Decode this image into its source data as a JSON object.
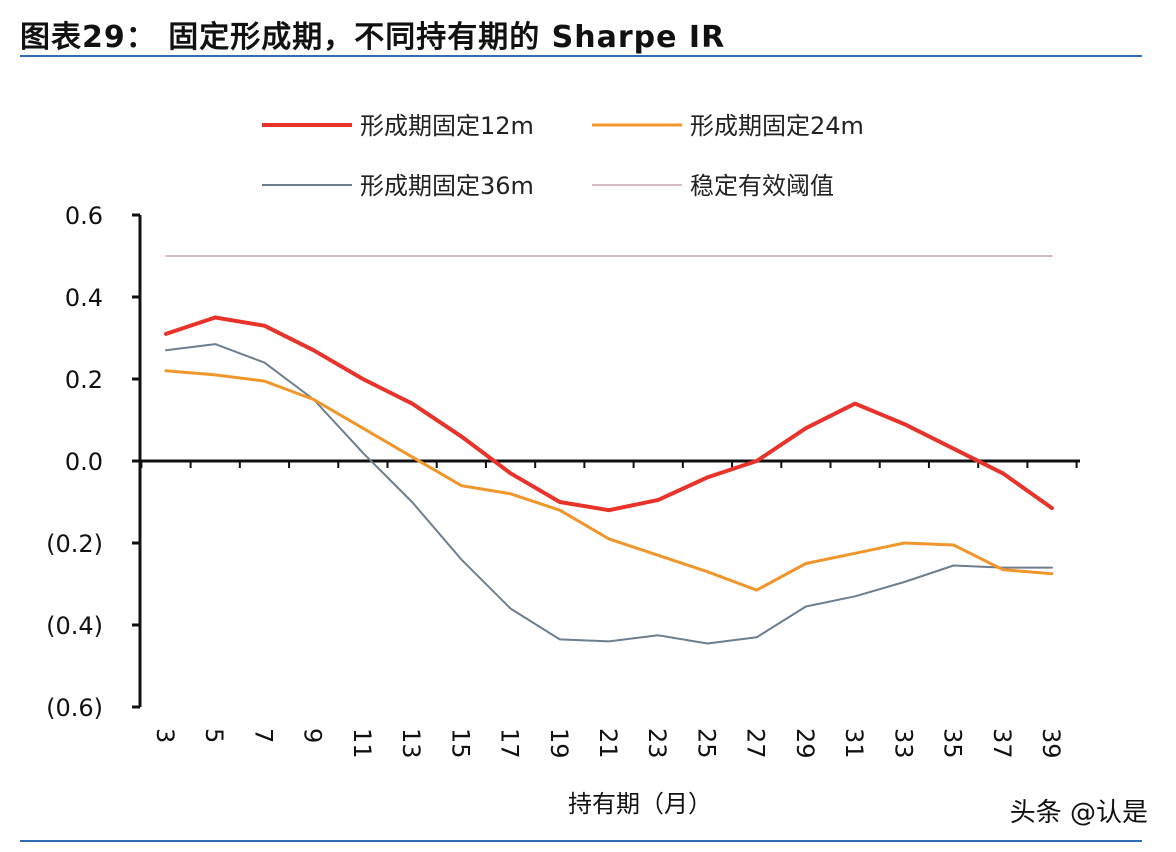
{
  "header": {
    "title": "图表29： 固定形成期，不同持有期的 Sharpe IR"
  },
  "footer": {
    "watermark": "头条 @认是"
  },
  "colors": {
    "rule": "#2f6db5",
    "s12": "#e8332a",
    "s24": "#f0962a",
    "s36": "#6d7e8f",
    "ref": "#c9a7ad"
  },
  "chart_data": {
    "type": "line",
    "title": "",
    "xlabel": "持有期（月）",
    "ylabel": "",
    "x": [
      3,
      5,
      7,
      9,
      11,
      13,
      15,
      17,
      19,
      21,
      23,
      25,
      27,
      29,
      31,
      33,
      35,
      37,
      39
    ],
    "x_tick_labels": [
      "3",
      "5",
      "7",
      "9",
      "11",
      "13",
      "15",
      "17",
      "19",
      "21",
      "23",
      "25",
      "27",
      "29",
      "31",
      "33",
      "35",
      "37",
      "39"
    ],
    "ylim": [
      -0.6,
      0.6
    ],
    "y_ticks": [
      0.6,
      0.4,
      0.2,
      0.0,
      -0.2,
      -0.4,
      -0.6
    ],
    "y_tick_labels": [
      "0.6",
      "0.4",
      "0.2",
      "0.0",
      "(0.2)",
      "(0.4)",
      "(0.6)"
    ],
    "grid": false,
    "legend_position": "top",
    "series": [
      {
        "name": "形成期固定12m",
        "color_key": "s12",
        "values": [
          0.31,
          0.35,
          0.33,
          0.27,
          0.2,
          0.14,
          0.06,
          -0.03,
          -0.1,
          -0.12,
          -0.095,
          -0.04,
          0.0,
          0.08,
          0.14,
          0.09,
          0.03,
          -0.03,
          -0.115
        ]
      },
      {
        "name": "形成期固定24m",
        "color_key": "s24",
        "values": [
          0.22,
          0.21,
          0.195,
          0.15,
          0.08,
          0.01,
          -0.06,
          -0.08,
          -0.12,
          -0.19,
          -0.23,
          -0.27,
          -0.315,
          -0.25,
          -0.225,
          -0.2,
          -0.205,
          -0.265,
          -0.275
        ]
      },
      {
        "name": "形成期固定36m",
        "color_key": "s36",
        "values": [
          0.27,
          0.285,
          0.24,
          0.15,
          0.02,
          -0.1,
          -0.24,
          -0.36,
          -0.435,
          -0.44,
          -0.425,
          -0.445,
          -0.43,
          -0.355,
          -0.33,
          -0.295,
          -0.255,
          -0.26,
          -0.26
        ]
      },
      {
        "name": "稳定有效阈值",
        "color_key": "ref",
        "values": [
          0.5,
          0.5,
          0.5,
          0.5,
          0.5,
          0.5,
          0.5,
          0.5,
          0.5,
          0.5,
          0.5,
          0.5,
          0.5,
          0.5,
          0.5,
          0.5,
          0.5,
          0.5,
          0.5
        ]
      }
    ]
  }
}
